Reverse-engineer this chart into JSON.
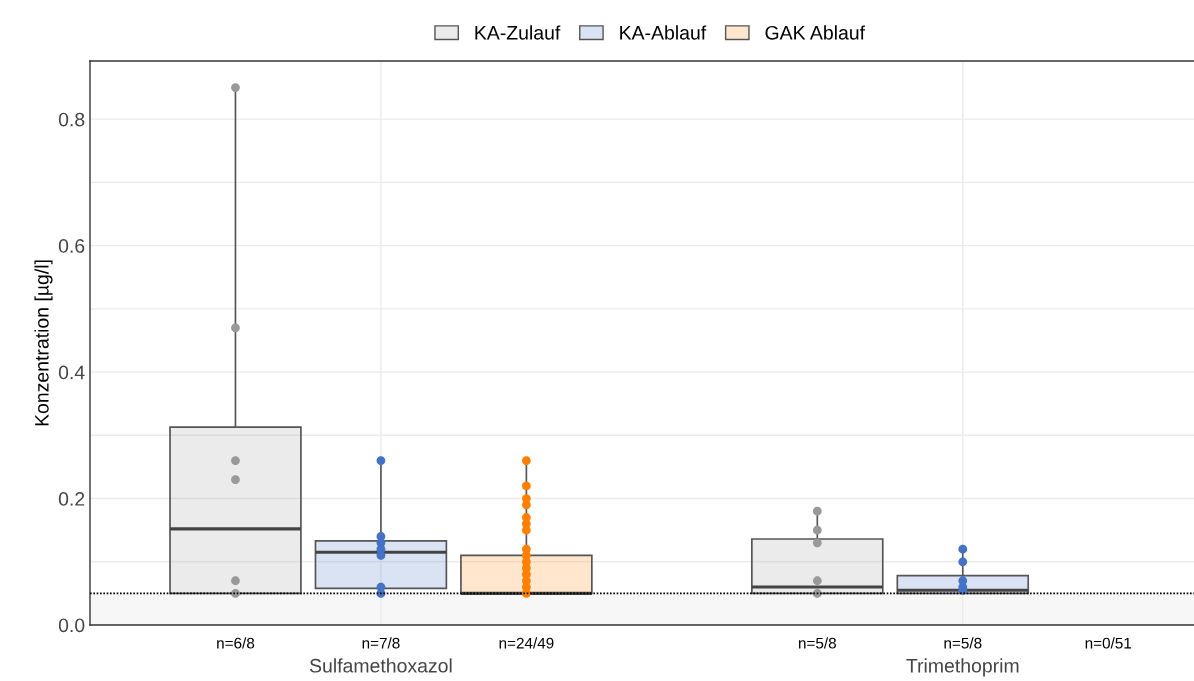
{
  "chart_data": {
    "type": "box",
    "ylabel": "Konzentration [µg/l]",
    "categories": [
      "Sulfamethoxazol",
      "Trimethoprim"
    ],
    "ylim": [
      0,
      0.892
    ],
    "yticks": [
      {
        "value": 0,
        "label": "0.0"
      },
      {
        "value": 0.1,
        "label": null
      },
      {
        "value": 0.2,
        "label": "0.2"
      },
      {
        "value": 0.3,
        "label": null
      },
      {
        "value": 0.4,
        "label": "0.4"
      },
      {
        "value": 0.5,
        "label": null
      },
      {
        "value": 0.6,
        "label": "0.6"
      },
      {
        "value": 0.7,
        "label": null
      },
      {
        "value": 0.8,
        "label": "0.8"
      }
    ],
    "grid": true,
    "legend": "top",
    "series": [
      {
        "name": "KA-Zulauf",
        "color": "#999999",
        "boxes": [
          {
            "low": 0.05,
            "q1": 0.05,
            "median": 0.152,
            "q3": 0.313,
            "high": 0.85,
            "outliers": [
              0.85,
              0.47,
              0.26,
              0.23,
              0.07,
              0.05
            ]
          },
          {
            "low": 0.05,
            "q1": 0.05,
            "median": 0.06,
            "q3": 0.136,
            "high": 0.18,
            "outliers": [
              0.18,
              0.15,
              0.13,
              0.07,
              0.05
            ]
          }
        ]
      },
      {
        "name": "KA-Ablauf",
        "color": "#4472c4",
        "boxes": [
          {
            "low": 0.05,
            "q1": 0.058,
            "median": 0.115,
            "q3": 0.133,
            "high": 0.26,
            "outliers": [
              0.26,
              0.14,
              0.13,
              0.12,
              0.11,
              0.06,
              0.05
            ]
          },
          {
            "low": 0.05,
            "q1": 0.05,
            "median": 0.055,
            "q3": 0.078,
            "high": 0.12,
            "outliers": [
              0.12,
              0.1,
              0.07,
              0.06,
              0.055
            ]
          }
        ]
      },
      {
        "name": "GAK Ablauf",
        "color": "#ff8000",
        "boxes": [
          {
            "low": 0.05,
            "q1": 0.05,
            "median": 0.05,
            "q3": 0.11,
            "high": 0.26,
            "outliers": [
              0.26,
              0.22,
              0.2,
              0.19,
              0.17,
              0.16,
              0.15,
              0.12,
              0.11,
              0.1,
              0.09,
              0.08,
              0.07,
              0.06,
              0.05
            ]
          },
          null
        ]
      }
    ],
    "ref_lines": [
      {
        "axis": "y",
        "value": 0.05,
        "line_style": "dotted",
        "color": "#000000"
      }
    ],
    "bands": [
      {
        "axis": "y",
        "from": 0,
        "to": 0.05,
        "color": "#f7f7f7"
      }
    ],
    "annotations": [
      "n=6/8",
      "n=7/8",
      "n=24/49",
      "n=5/8",
      "n=5/8",
      "n=0/51"
    ]
  }
}
